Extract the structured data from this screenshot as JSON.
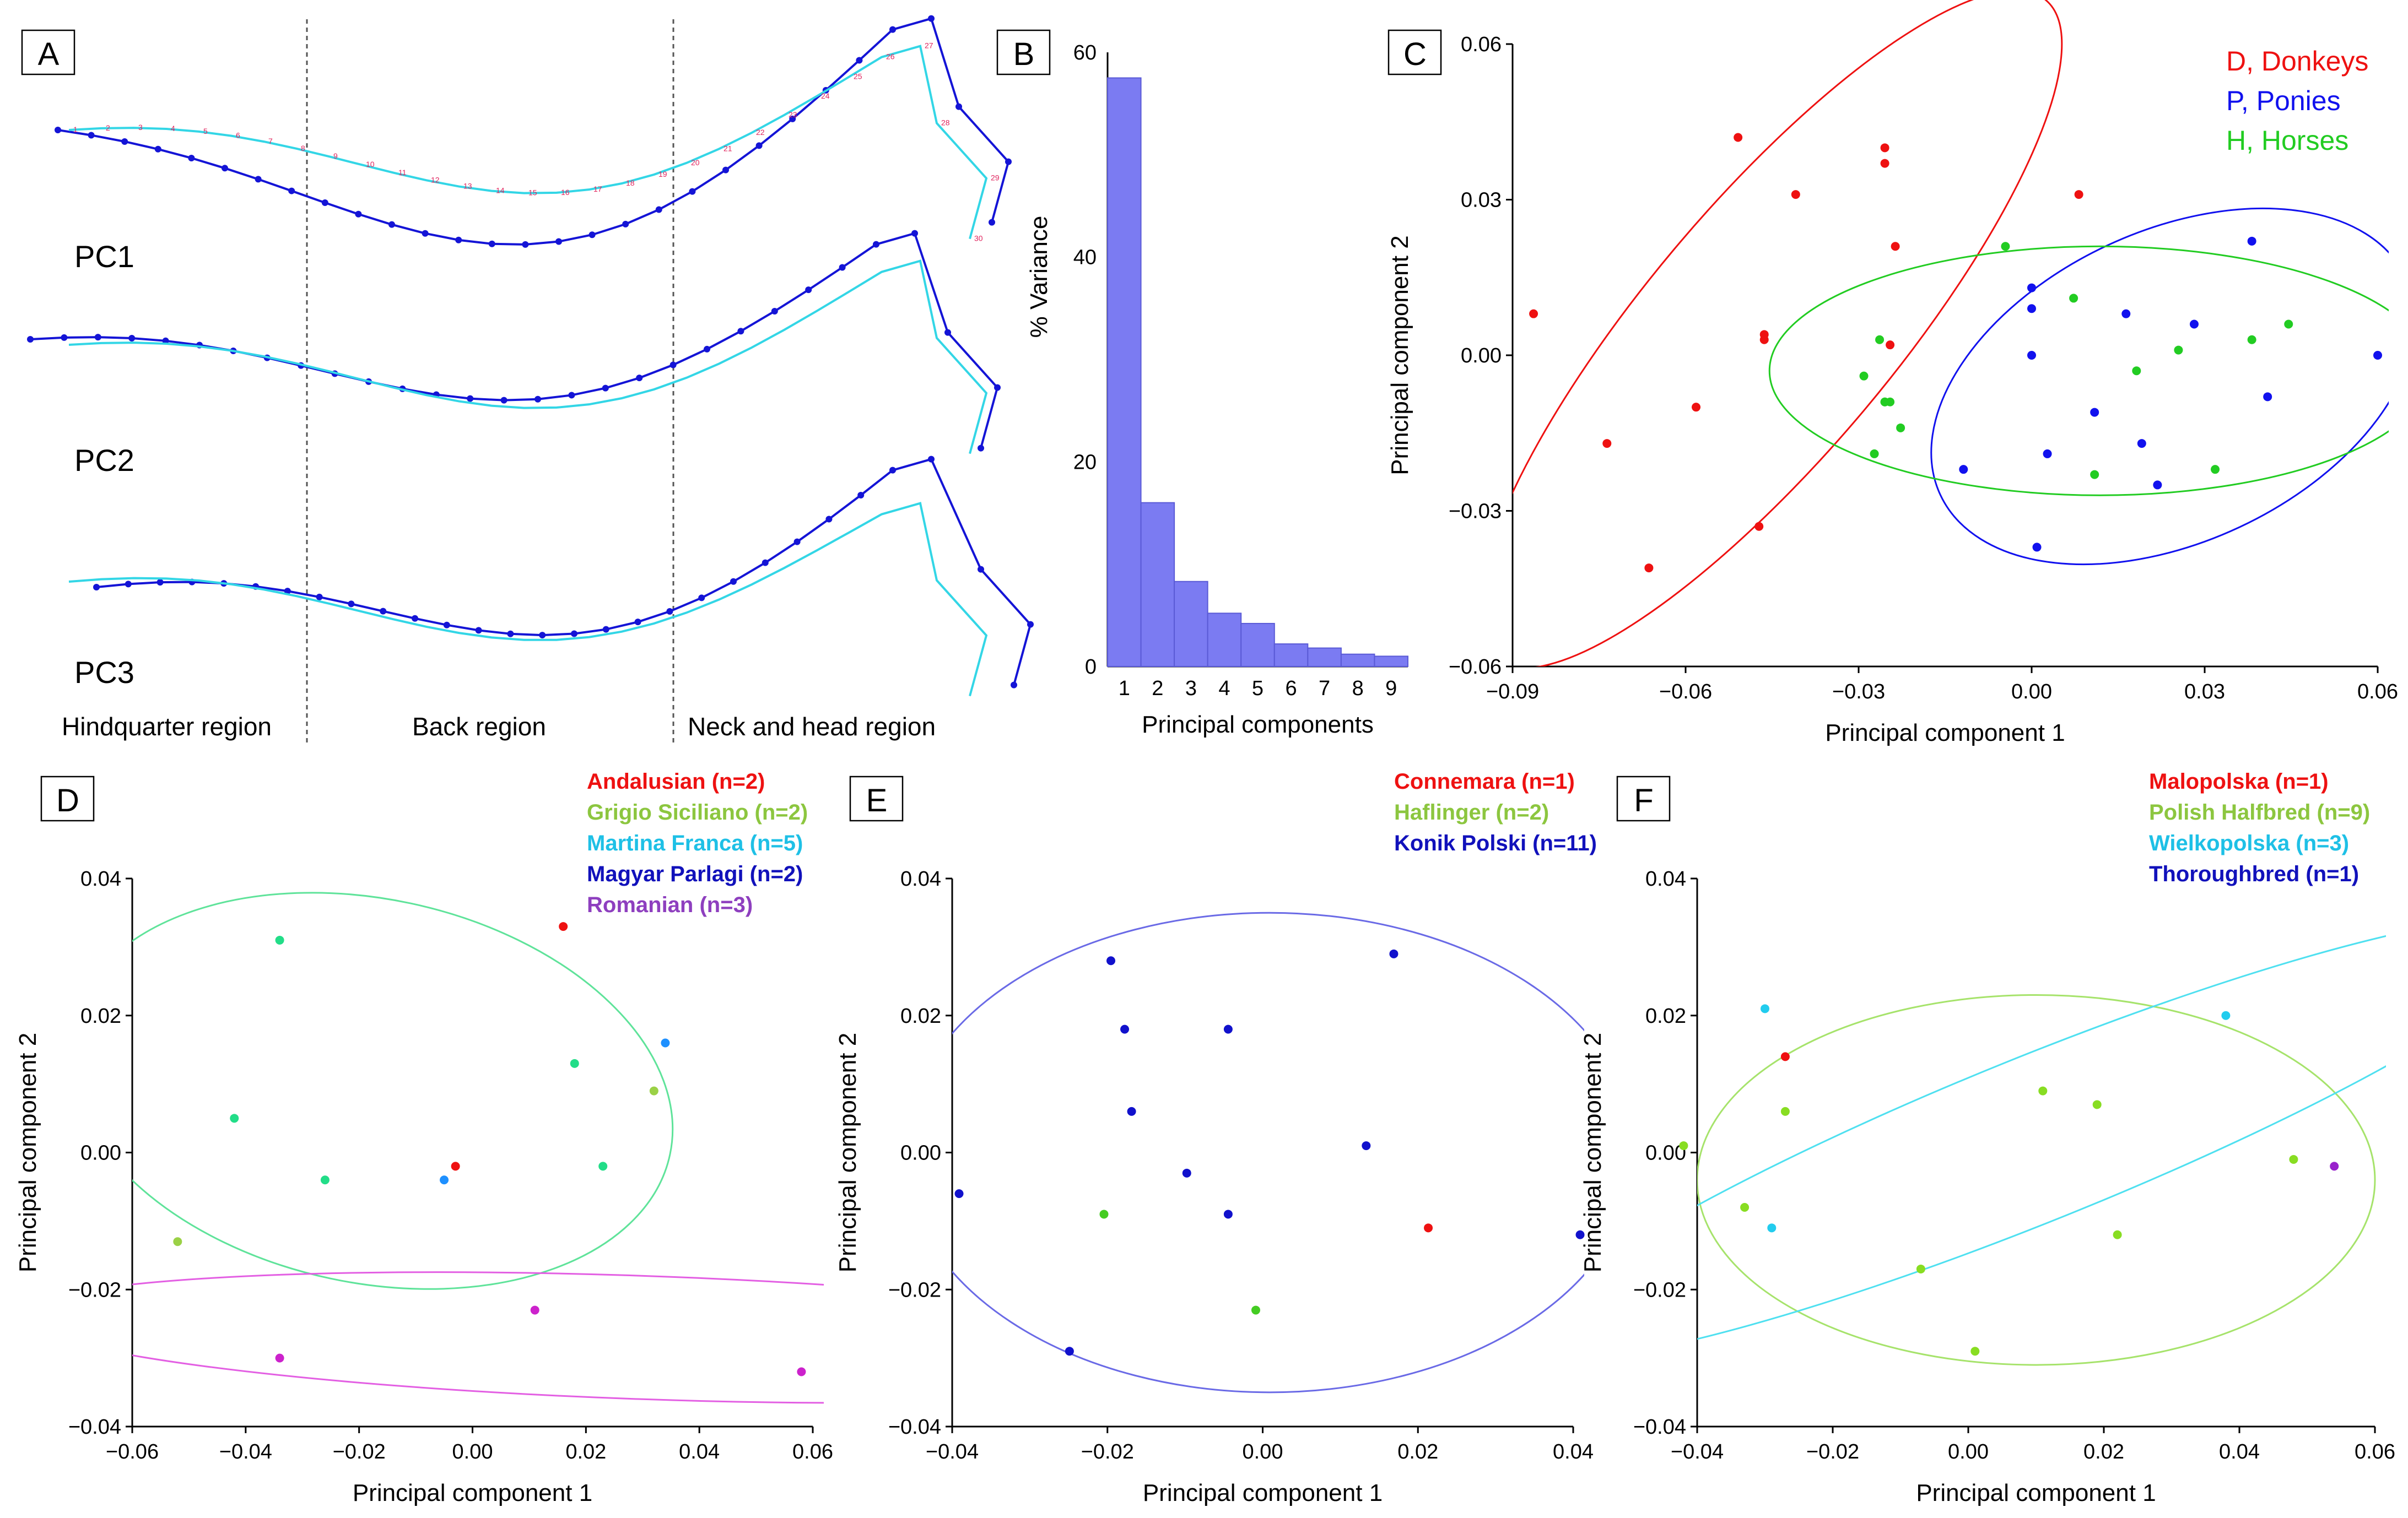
{
  "panels": {
    "A": {
      "letter": "A"
    },
    "B": {
      "letter": "B"
    },
    "C": {
      "letter": "C"
    },
    "D": {
      "letter": "D"
    },
    "E": {
      "letter": "E"
    },
    "F": {
      "letter": "F"
    }
  },
  "shape_panel": {
    "pc_labels": [
      "PC1",
      "PC2",
      "PC3"
    ],
    "regions": [
      "Hindquarter region",
      "Back region",
      "Neck and head region"
    ],
    "landmark_numbers": [
      "1",
      "2",
      "3",
      "4",
      "5",
      "6",
      "7",
      "8",
      "9",
      "10",
      "11",
      "12",
      "13",
      "14",
      "15",
      "16",
      "17",
      "18",
      "19",
      "20",
      "21",
      "22",
      "23",
      "24",
      "25",
      "26",
      "27",
      "28",
      "29",
      "30"
    ]
  },
  "chart_data": [
    {
      "id": "B",
      "type": "bar",
      "xlabel": "Principal components",
      "ylabel": "% Variance",
      "categories": [
        "1",
        "2",
        "3",
        "4",
        "5",
        "6",
        "7",
        "8",
        "9"
      ],
      "values": [
        57.5,
        16.0,
        8.3,
        5.2,
        4.2,
        2.2,
        1.8,
        1.2,
        1.0
      ],
      "ylim": [
        0,
        60
      ],
      "yticks": [
        "0",
        "20",
        "40",
        "60"
      ],
      "bar_color": "#7b7bf2"
    },
    {
      "id": "C",
      "type": "scatter",
      "xlabel": "Principal component  1",
      "ylabel": "Principal component  2",
      "xlim": [
        -0.09,
        0.075
      ],
      "ylim": [
        -0.06,
        0.06
      ],
      "xticks": [
        "−0.09",
        "−0.06",
        "−0.03",
        "0.00",
        "0.03",
        "0.06"
      ],
      "yticks": [
        "−0.06",
        "−0.03",
        "0.00",
        "0.03",
        "0.06"
      ],
      "series": [
        {
          "name": "D, Donkeys",
          "color": "#ee1111",
          "points": [
            [
              -0.086,
              0.008
            ],
            [
              -0.072,
              -0.017
            ],
            [
              -0.064,
              -0.041
            ],
            [
              -0.055,
              -0.01
            ],
            [
              -0.047,
              0.042
            ],
            [
              -0.042,
              0.003
            ],
            [
              -0.042,
              0.004
            ],
            [
              -0.043,
              -0.033
            ],
            [
              -0.036,
              0.031
            ],
            [
              -0.019,
              0.04
            ],
            [
              -0.019,
              0.037
            ],
            [
              -0.018,
              0.002
            ],
            [
              -0.017,
              0.021
            ],
            [
              0.018,
              0.031
            ]
          ],
          "ellipse": {
            "cx": -0.041,
            "cy": 0.005,
            "rx": 0.082,
            "ry": 0.024,
            "angle_deg": 50
          }
        },
        {
          "name": "P, Ponies",
          "color": "#1111ee",
          "points": [
            [
              -0.004,
              -0.022
            ],
            [
              0.009,
              0.013
            ],
            [
              0.009,
              0.009
            ],
            [
              0.009,
              0.0
            ],
            [
              0.01,
              -0.037
            ],
            [
              0.012,
              -0.019
            ],
            [
              0.021,
              -0.011
            ],
            [
              0.027,
              0.008
            ],
            [
              0.03,
              -0.017
            ],
            [
              0.033,
              -0.025
            ],
            [
              0.04,
              0.006
            ],
            [
              0.051,
              0.022
            ],
            [
              0.054,
              -0.008
            ],
            [
              0.075,
              0.0
            ]
          ],
          "ellipse": {
            "cx": 0.036,
            "cy": -0.006,
            "rx": 0.049,
            "ry": 0.03,
            "angle_deg": 25
          }
        },
        {
          "name": "H, Horses",
          "color": "#22cc22",
          "points": [
            [
              -0.023,
              -0.004
            ],
            [
              -0.021,
              -0.019
            ],
            [
              -0.02,
              0.003
            ],
            [
              -0.019,
              -0.009
            ],
            [
              -0.019,
              -0.009
            ],
            [
              -0.018,
              -0.009
            ],
            [
              -0.016,
              -0.014
            ],
            [
              0.004,
              0.021
            ],
            [
              0.017,
              0.011
            ],
            [
              0.021,
              -0.023
            ],
            [
              0.029,
              -0.003
            ],
            [
              0.037,
              0.001
            ],
            [
              0.044,
              -0.022
            ],
            [
              0.051,
              0.003
            ],
            [
              0.058,
              0.006
            ]
          ],
          "ellipse": {
            "cx": 0.022,
            "cy": -0.003,
            "rx": 0.063,
            "ry": 0.024,
            "angle_deg": 0
          }
        }
      ]
    },
    {
      "id": "D",
      "type": "scatter",
      "xlabel": "Principal component  1",
      "ylabel": "Principal component  2",
      "xlim": [
        -0.06,
        0.06
      ],
      "ylim": [
        -0.04,
        0.04
      ],
      "xticks": [
        "−0.06",
        "−0.04",
        "−0.02",
        "0.00",
        "0.02",
        "0.04",
        "0.06"
      ],
      "yticks": [
        "−0.04",
        "−0.02",
        "0.00",
        "0.02",
        "0.04"
      ],
      "series": [
        {
          "name": "Andalusian (n=2)",
          "color": "#ee1111",
          "label_color": "#ee1111",
          "points": [
            [
              -0.003,
              -0.002
            ],
            [
              0.016,
              0.033
            ]
          ]
        },
        {
          "name": "Grigio Siciliano (n=2)",
          "color": "#9bd146",
          "label_color": "#8cc63f",
          "points": [
            [
              -0.052,
              -0.013
            ],
            [
              0.032,
              0.009
            ]
          ]
        },
        {
          "name": "Martina Franca (n=5)",
          "color": "#22dd88",
          "label_color": "#1ec0e6",
          "points": [
            [
              -0.034,
              0.031
            ],
            [
              -0.042,
              0.005
            ],
            [
              -0.026,
              -0.004
            ],
            [
              0.018,
              0.013
            ],
            [
              0.023,
              -0.002
            ]
          ],
          "ellipse": {
            "cx": -0.018,
            "cy": 0.009,
            "rx": 0.054,
            "ry": 0.028,
            "angle_deg": -12,
            "color": "#5fe39a"
          }
        },
        {
          "name": "Magyar Parlagi (n=2)",
          "color": "#1e90ff",
          "label_color": "#1111bb",
          "points": [
            [
              -0.005,
              -0.004
            ],
            [
              0.034,
              0.016
            ]
          ]
        },
        {
          "name": "Romanian (n=3)",
          "color": "#cc22cc",
          "label_color": "#8e3fbf",
          "points": [
            [
              -0.034,
              -0.03
            ],
            [
              0.011,
              -0.023
            ],
            [
              0.058,
              -0.032
            ]
          ],
          "ellipse": {
            "cx": 0.03,
            "cy": -0.027,
            "rx": 0.11,
            "ry": 0.009,
            "angle_deg": -2,
            "color": "#e35fe3"
          }
        }
      ]
    },
    {
      "id": "E",
      "type": "scatter",
      "xlabel": "Principal component  1",
      "ylabel": "Principal component  2",
      "xlim": [
        -0.04,
        0.05
      ],
      "ylim": [
        -0.04,
        0.04
      ],
      "xticks": [
        "−0.04",
        "−0.02",
        "0.00",
        "0.02",
        "0.04"
      ],
      "yticks": [
        "−0.04",
        "−0.02",
        "0.00",
        "0.02",
        "0.04"
      ],
      "series": [
        {
          "name": "Connemara (n=1)",
          "color": "#ee1111",
          "label_color": "#ee1111",
          "points": [
            [
              0.029,
              -0.011
            ]
          ]
        },
        {
          "name": "Haflinger (n=2)",
          "color": "#44cc22",
          "label_color": "#8cc63f",
          "points": [
            [
              -0.018,
              -0.009
            ],
            [
              0.004,
              -0.023
            ]
          ]
        },
        {
          "name": "Konik Polski (n=11)",
          "color": "#1111cc",
          "label_color": "#1111bb",
          "points": [
            [
              -0.039,
              -0.006
            ],
            [
              -0.017,
              0.028
            ],
            [
              -0.015,
              0.018
            ],
            [
              -0.014,
              0.006
            ],
            [
              -0.006,
              -0.003
            ],
            [
              0.0,
              0.018
            ],
            [
              0.0,
              -0.009
            ],
            [
              0.02,
              0.001
            ],
            [
              0.024,
              0.029
            ],
            [
              -0.023,
              -0.029
            ],
            [
              0.051,
              -0.012
            ]
          ],
          "ellipse": {
            "cx": 0.006,
            "cy": 0.0,
            "rx": 0.053,
            "ry": 0.035,
            "angle_deg": 0,
            "color": "#6a6ae6"
          }
        }
      ]
    },
    {
      "id": "F",
      "type": "scatter",
      "xlabel": "Principal component  1",
      "ylabel": "Principal component  2",
      "xlim": [
        -0.04,
        0.06
      ],
      "ylim": [
        -0.04,
        0.04
      ],
      "xticks": [
        "−0.04",
        "−0.02",
        "0.00",
        "0.02",
        "0.04",
        "0.06"
      ],
      "yticks": [
        "−0.04",
        "−0.02",
        "0.00",
        "0.02",
        "0.04"
      ],
      "series": [
        {
          "name": "Malopolska (n=1)",
          "color": "#ee1111",
          "label_color": "#ee1111",
          "points": [
            [
              -0.027,
              0.014
            ]
          ]
        },
        {
          "name": "Polish Halfbred (n=9)",
          "color": "#88dd22",
          "label_color": "#8cc63f",
          "points": [
            [
              -0.042,
              0.001
            ],
            [
              -0.033,
              -0.008
            ],
            [
              -0.027,
              0.006
            ],
            [
              -0.007,
              -0.017
            ],
            [
              0.001,
              -0.029
            ],
            [
              0.011,
              0.009
            ],
            [
              0.019,
              0.007
            ],
            [
              0.022,
              -0.012
            ],
            [
              0.048,
              -0.001
            ]
          ],
          "ellipse": {
            "cx": 0.01,
            "cy": -0.004,
            "rx": 0.05,
            "ry": 0.027,
            "angle_deg": 0,
            "color": "#a6e36b"
          }
        },
        {
          "name": "Wielkopolska (n=3)",
          "color": "#22ccee",
          "label_color": "#1ec0e6",
          "points": [
            [
              -0.03,
              0.021
            ],
            [
              -0.029,
              -0.011
            ],
            [
              0.038,
              0.02
            ]
          ],
          "ellipse": {
            "cx": 0.01,
            "cy": 0.002,
            "rx": 0.082,
            "ry": 0.012,
            "angle_deg": 22,
            "color": "#4fe0f0"
          }
        },
        {
          "name": "Thoroughbred (n=1)",
          "color": "#9922cc",
          "label_color": "#1111bb",
          "points": [
            [
              0.054,
              -0.002
            ]
          ]
        }
      ]
    }
  ]
}
